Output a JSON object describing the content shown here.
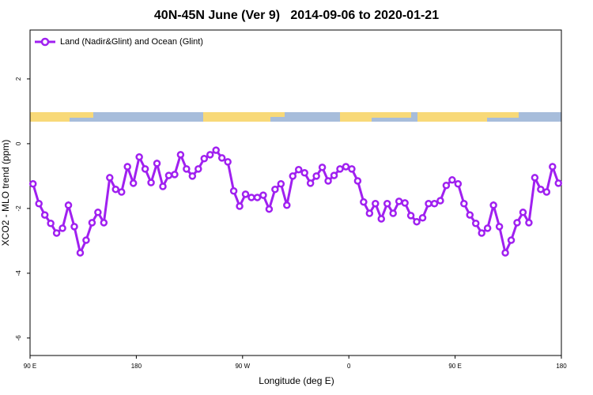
{
  "chart_data": {
    "type": "line",
    "title": "40N-45N June (Ver 9)   2014-09-06 to 2020-01-21",
    "x_label": "Longitude (deg E)",
    "y_label": "XCO2 - MLO trend (ppm)",
    "legend": "top-left",
    "xlim": [
      90,
      540
    ],
    "ylim": [
      -6.54,
      3.51
    ],
    "xticks": [
      {
        "value": 90,
        "label": "90 E"
      },
      180,
      {
        "value": 270,
        "label": "90 W"
      },
      {
        "value": 360,
        "label": "0"
      },
      {
        "value": 450,
        "label": "90 E"
      },
      {
        "value": 540,
        "label": "180"
      }
    ],
    "yticks": [
      -6,
      -4,
      -2,
      0,
      2
    ],
    "x": [
      92.5,
      97.5,
      102.5,
      107.5,
      112.5,
      117.5,
      122.5,
      127.5,
      132.5,
      137.5,
      142.5,
      147.5,
      152.5,
      157.5,
      162.5,
      167.5,
      172.5,
      177.5,
      182.5,
      187.5,
      192.5,
      197.5,
      202.5,
      207.5,
      212.5,
      217.5,
      222.5,
      227.5,
      232.5,
      237.5,
      242.5,
      247.5,
      252.5,
      257.5,
      262.5,
      267.5,
      272.5,
      277.5,
      282.5,
      287.5,
      292.5,
      297.5,
      302.5,
      307.5,
      312.5,
      317.5,
      322.5,
      327.5,
      332.5,
      337.5,
      342.5,
      347.5,
      352.5,
      357.5,
      362.5,
      367.5,
      372.5,
      377.5,
      382.5,
      387.5,
      392.5,
      397.5,
      402.5,
      407.5,
      412.5,
      417.5,
      422.5,
      427.5,
      432.5,
      437.5,
      442.5,
      447.5,
      452.5,
      457.5,
      462.5,
      467.5,
      472.5,
      477.5,
      482.5,
      487.5,
      492.5,
      497.5,
      502.5,
      507.5,
      512.5,
      517.5,
      522.5,
      527.5,
      532.5,
      537.5
    ],
    "series": [
      {
        "name": "Land (Nadir&Glint) and Ocean (Glint)",
        "color": "#a020f0",
        "values": [
          -1.24,
          -1.85,
          -2.2,
          -2.46,
          -2.76,
          -2.61,
          -1.9,
          -2.56,
          -3.37,
          -2.98,
          -2.44,
          -2.12,
          -2.44,
          -1.05,
          -1.41,
          -1.49,
          -0.71,
          -1.22,
          -0.41,
          -0.78,
          -1.2,
          -0.61,
          -1.32,
          -0.98,
          -0.95,
          -0.34,
          -0.78,
          -1.0,
          -0.78,
          -0.46,
          -0.34,
          -0.2,
          -0.44,
          -0.56,
          -1.46,
          -1.93,
          -1.56,
          -1.66,
          -1.66,
          -1.59,
          -2.02,
          -1.41,
          -1.24,
          -1.9,
          -1.0,
          -0.8,
          -0.9,
          -1.22,
          -1.0,
          -0.73,
          -1.15,
          -0.98,
          -0.78,
          -0.71,
          -0.78,
          -1.15,
          -1.8,
          -2.15,
          -1.85,
          -2.32,
          -1.85,
          -2.15,
          -1.78,
          -1.83,
          -2.22,
          -2.41,
          -2.29,
          -1.85,
          -1.85,
          -1.76,
          -1.29,
          -1.12,
          -1.24,
          -1.85,
          -2.2,
          -2.46,
          -2.76,
          -2.61,
          -1.9,
          -2.56,
          -3.37,
          -2.98,
          -2.44,
          -2.12,
          -2.44,
          -1.05,
          -1.41,
          -1.49,
          -0.71,
          -1.22
        ]
      }
    ]
  }
}
